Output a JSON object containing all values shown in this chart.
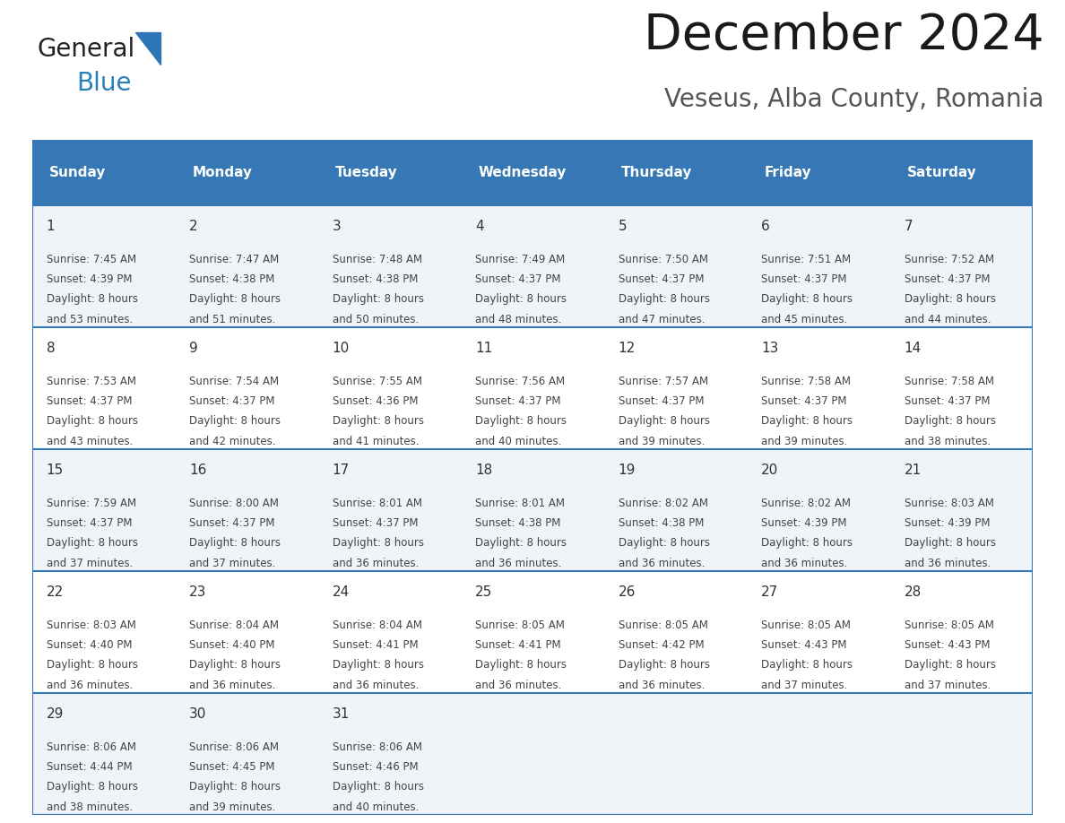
{
  "title": "December 2024",
  "subtitle": "Veseus, Alba County, Romania",
  "days_of_week": [
    "Sunday",
    "Monday",
    "Tuesday",
    "Wednesday",
    "Thursday",
    "Friday",
    "Saturday"
  ],
  "header_bg": "#3578B5",
  "header_text_color": "#FFFFFF",
  "row_bg_odd": "#F0F4F8",
  "row_bg_even": "#FFFFFF",
  "cell_border_color": "#3578B5",
  "text_color": "#444444",
  "day_num_color": "#333333",
  "calendar_data": [
    {
      "day": 1,
      "col": 0,
      "row": 0,
      "sunrise": "7:45 AM",
      "sunset": "4:39 PM",
      "daylight_min": "53"
    },
    {
      "day": 2,
      "col": 1,
      "row": 0,
      "sunrise": "7:47 AM",
      "sunset": "4:38 PM",
      "daylight_min": "51"
    },
    {
      "day": 3,
      "col": 2,
      "row": 0,
      "sunrise": "7:48 AM",
      "sunset": "4:38 PM",
      "daylight_min": "50"
    },
    {
      "day": 4,
      "col": 3,
      "row": 0,
      "sunrise": "7:49 AM",
      "sunset": "4:37 PM",
      "daylight_min": "48"
    },
    {
      "day": 5,
      "col": 4,
      "row": 0,
      "sunrise": "7:50 AM",
      "sunset": "4:37 PM",
      "daylight_min": "47"
    },
    {
      "day": 6,
      "col": 5,
      "row": 0,
      "sunrise": "7:51 AM",
      "sunset": "4:37 PM",
      "daylight_min": "45"
    },
    {
      "day": 7,
      "col": 6,
      "row": 0,
      "sunrise": "7:52 AM",
      "sunset": "4:37 PM",
      "daylight_min": "44"
    },
    {
      "day": 8,
      "col": 0,
      "row": 1,
      "sunrise": "7:53 AM",
      "sunset": "4:37 PM",
      "daylight_min": "43"
    },
    {
      "day": 9,
      "col": 1,
      "row": 1,
      "sunrise": "7:54 AM",
      "sunset": "4:37 PM",
      "daylight_min": "42"
    },
    {
      "day": 10,
      "col": 2,
      "row": 1,
      "sunrise": "7:55 AM",
      "sunset": "4:36 PM",
      "daylight_min": "41"
    },
    {
      "day": 11,
      "col": 3,
      "row": 1,
      "sunrise": "7:56 AM",
      "sunset": "4:37 PM",
      "daylight_min": "40"
    },
    {
      "day": 12,
      "col": 4,
      "row": 1,
      "sunrise": "7:57 AM",
      "sunset": "4:37 PM",
      "daylight_min": "39"
    },
    {
      "day": 13,
      "col": 5,
      "row": 1,
      "sunrise": "7:58 AM",
      "sunset": "4:37 PM",
      "daylight_min": "39"
    },
    {
      "day": 14,
      "col": 6,
      "row": 1,
      "sunrise": "7:58 AM",
      "sunset": "4:37 PM",
      "daylight_min": "38"
    },
    {
      "day": 15,
      "col": 0,
      "row": 2,
      "sunrise": "7:59 AM",
      "sunset": "4:37 PM",
      "daylight_min": "37"
    },
    {
      "day": 16,
      "col": 1,
      "row": 2,
      "sunrise": "8:00 AM",
      "sunset": "4:37 PM",
      "daylight_min": "37"
    },
    {
      "day": 17,
      "col": 2,
      "row": 2,
      "sunrise": "8:01 AM",
      "sunset": "4:37 PM",
      "daylight_min": "36"
    },
    {
      "day": 18,
      "col": 3,
      "row": 2,
      "sunrise": "8:01 AM",
      "sunset": "4:38 PM",
      "daylight_min": "36"
    },
    {
      "day": 19,
      "col": 4,
      "row": 2,
      "sunrise": "8:02 AM",
      "sunset": "4:38 PM",
      "daylight_min": "36"
    },
    {
      "day": 20,
      "col": 5,
      "row": 2,
      "sunrise": "8:02 AM",
      "sunset": "4:39 PM",
      "daylight_min": "36"
    },
    {
      "day": 21,
      "col": 6,
      "row": 2,
      "sunrise": "8:03 AM",
      "sunset": "4:39 PM",
      "daylight_min": "36"
    },
    {
      "day": 22,
      "col": 0,
      "row": 3,
      "sunrise": "8:03 AM",
      "sunset": "4:40 PM",
      "daylight_min": "36"
    },
    {
      "day": 23,
      "col": 1,
      "row": 3,
      "sunrise": "8:04 AM",
      "sunset": "4:40 PM",
      "daylight_min": "36"
    },
    {
      "day": 24,
      "col": 2,
      "row": 3,
      "sunrise": "8:04 AM",
      "sunset": "4:41 PM",
      "daylight_min": "36"
    },
    {
      "day": 25,
      "col": 3,
      "row": 3,
      "sunrise": "8:05 AM",
      "sunset": "4:41 PM",
      "daylight_min": "36"
    },
    {
      "day": 26,
      "col": 4,
      "row": 3,
      "sunrise": "8:05 AM",
      "sunset": "4:42 PM",
      "daylight_min": "36"
    },
    {
      "day": 27,
      "col": 5,
      "row": 3,
      "sunrise": "8:05 AM",
      "sunset": "4:43 PM",
      "daylight_min": "37"
    },
    {
      "day": 28,
      "col": 6,
      "row": 3,
      "sunrise": "8:05 AM",
      "sunset": "4:43 PM",
      "daylight_min": "37"
    },
    {
      "day": 29,
      "col": 0,
      "row": 4,
      "sunrise": "8:06 AM",
      "sunset": "4:44 PM",
      "daylight_min": "38"
    },
    {
      "day": 30,
      "col": 1,
      "row": 4,
      "sunrise": "8:06 AM",
      "sunset": "4:45 PM",
      "daylight_min": "39"
    },
    {
      "day": 31,
      "col": 2,
      "row": 4,
      "sunrise": "8:06 AM",
      "sunset": "4:46 PM",
      "daylight_min": "40"
    }
  ],
  "num_rows": 5,
  "num_cols": 7,
  "logo_text1": "General",
  "logo_text2": "Blue",
  "logo_color1": "#222222",
  "logo_color2": "#2980B9",
  "logo_triangle_color": "#2E75B6"
}
